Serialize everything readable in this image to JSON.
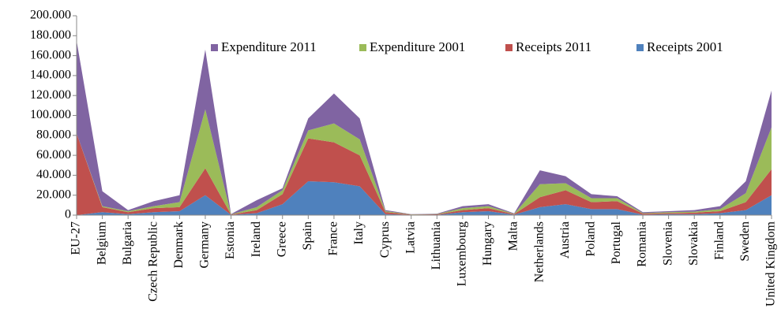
{
  "chart_data": {
    "type": "stacked_area",
    "categories": [
      "EU-27",
      "Belgium",
      "Bulgaria",
      "Czech Republic",
      "Denmark",
      "Germany",
      "Estonia",
      "Ireland",
      "Greece",
      "Spain",
      "France",
      "Italy",
      "Cyprus",
      "Latvia",
      "Lithuania",
      "Luxembourg",
      "Hungary",
      "Malta",
      "Netherlands",
      "Austria",
      "Poland",
      "Portugal",
      "Romania",
      "Slovenia",
      "Slovakia",
      "Finland",
      "Sweden",
      "United Kingdom"
    ],
    "series": [
      {
        "name": "Receipts 2001",
        "color": "#4f81bd",
        "values": [
          0,
          3000,
          1000,
          3000,
          4000,
          20000,
          300,
          2000,
          11000,
          34000,
          33000,
          29000,
          1000,
          300,
          300,
          3000,
          4000,
          500,
          8000,
          11000,
          6000,
          6000,
          500,
          1000,
          1000,
          2000,
          5000,
          20000
        ]
      },
      {
        "name": "Receipts 2011",
        "color": "#c0504d",
        "values": [
          82000,
          5000,
          2000,
          4000,
          4000,
          27000,
          300,
          3000,
          10000,
          43000,
          40000,
          31000,
          2000,
          300,
          500,
          2000,
          3000,
          500,
          10000,
          14000,
          7000,
          8000,
          1000,
          1000,
          1500,
          2000,
          8000,
          26000
        ]
      },
      {
        "name": "Expenditure 2001",
        "color": "#9bbb59",
        "values": [
          0,
          1000,
          1000,
          2000,
          5000,
          59000,
          200,
          3000,
          4000,
          8000,
          19000,
          16000,
          1000,
          200,
          300,
          2000,
          2000,
          300,
          13000,
          7000,
          4000,
          3000,
          500,
          1000,
          1000,
          2000,
          9000,
          42000
        ]
      },
      {
        "name": "Expenditure 2011",
        "color": "#8064a2",
        "values": [
          93000,
          15000,
          1000,
          5000,
          7000,
          60000,
          300,
          7000,
          2000,
          12000,
          30000,
          21000,
          1000,
          200,
          400,
          2000,
          2000,
          500,
          14000,
          7000,
          4000,
          2000,
          1000,
          1000,
          1500,
          3000,
          12000,
          37000
        ]
      }
    ],
    "ylim": [
      0,
      200000
    ],
    "yticks": [
      0,
      {
        "value": 20000,
        "label": "20.000"
      },
      {
        "value": 40000,
        "label": "40.000"
      },
      {
        "value": 60000,
        "label": "60.000"
      },
      {
        "value": 80000,
        "label": "80.000"
      },
      {
        "value": 100000,
        "label": "100.000"
      },
      {
        "value": 120000,
        "label": "120.000"
      },
      {
        "value": 140000,
        "label": "140.000"
      },
      {
        "value": 160000,
        "label": "160.000"
      },
      {
        "value": 180000,
        "label": "180.000"
      },
      {
        "value": 200000,
        "label": "200.000"
      }
    ],
    "legend": "top-right"
  }
}
